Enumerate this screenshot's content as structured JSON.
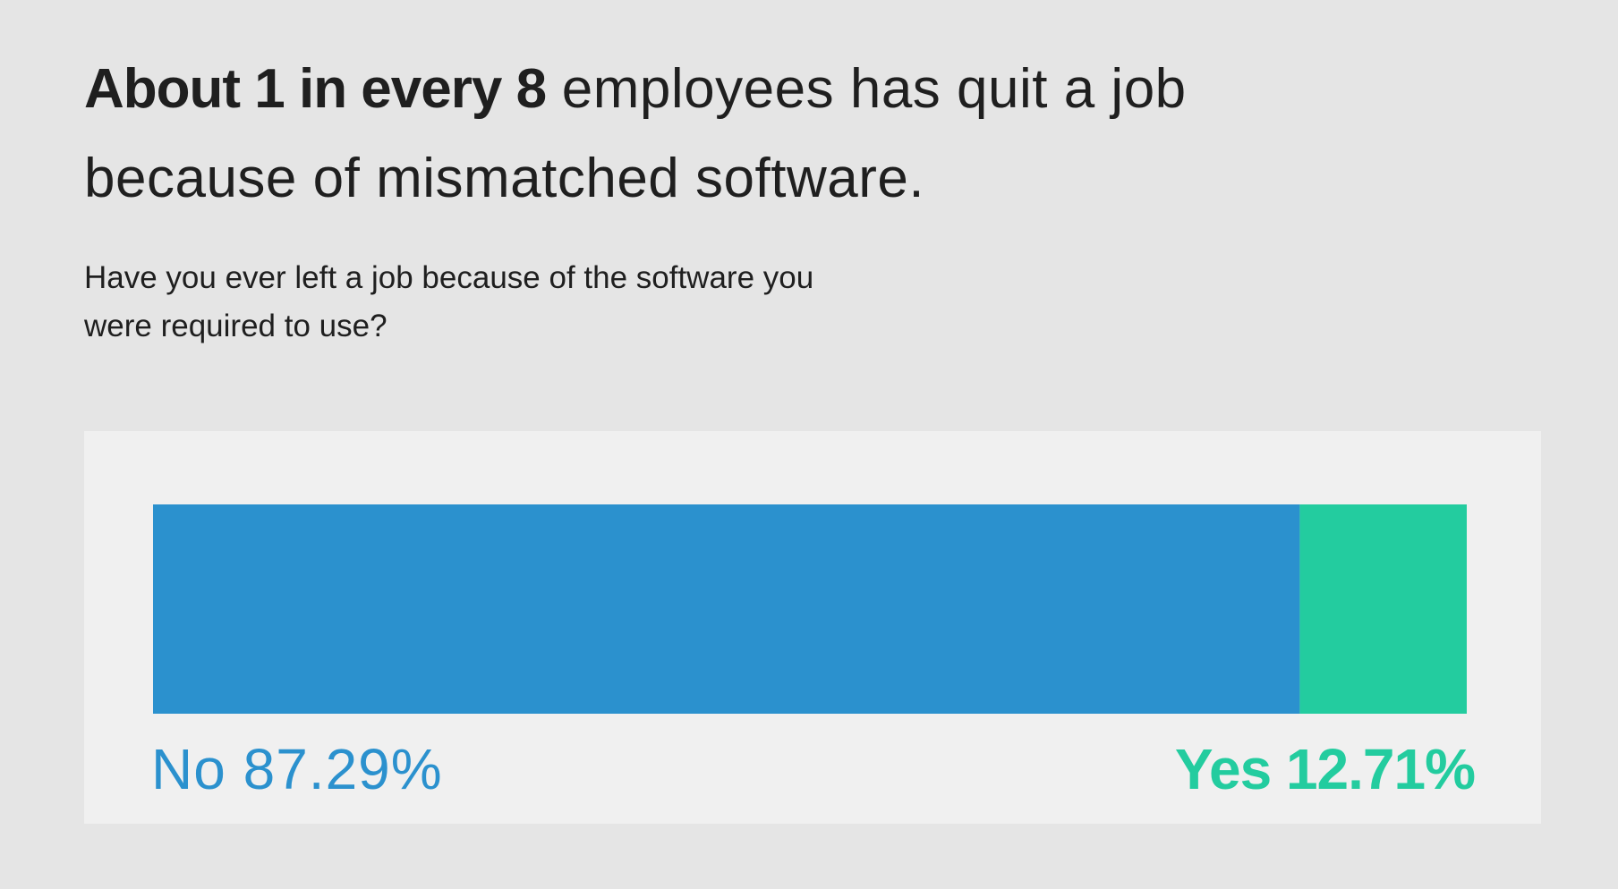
{
  "headline": {
    "bold": "About 1 in every 8",
    "rest": " employees has quit a job because of mismatched software."
  },
  "question": "Have you ever left a job because of the software you were required to use?",
  "chart_data": {
    "type": "bar",
    "orientation": "horizontal-stacked",
    "categories": [
      "No",
      "Yes"
    ],
    "values": [
      87.29,
      12.71
    ],
    "unit": "%",
    "colors": [
      "#2b91ce",
      "#23cc9f"
    ],
    "labels": {
      "no_name": "No",
      "no_value": "87.29%",
      "yes_name": "Yes",
      "yes_value": "12.71%"
    }
  }
}
